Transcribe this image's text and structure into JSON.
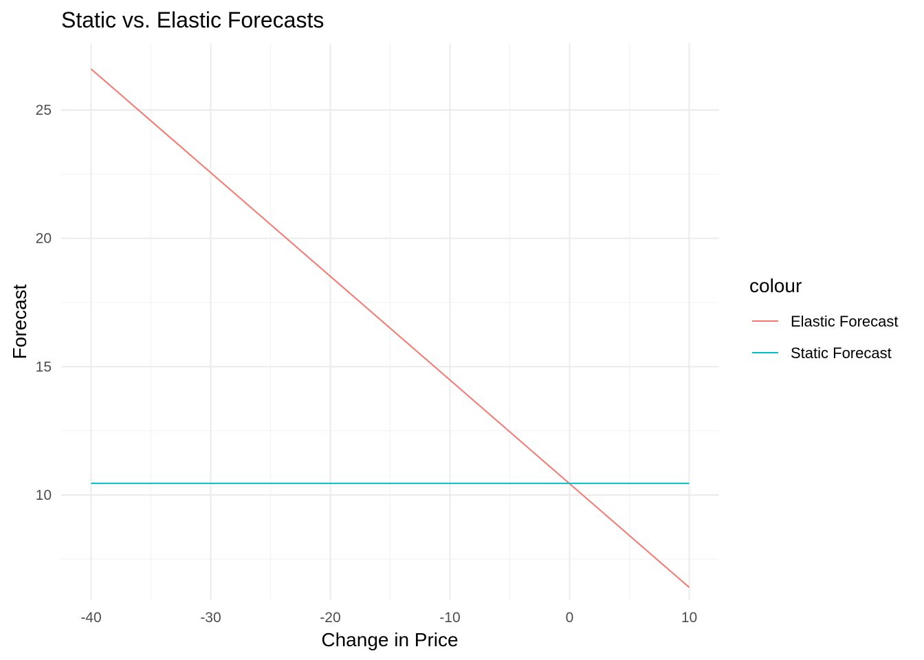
{
  "chart_data": {
    "type": "line",
    "title": "Static vs. Elastic Forecasts",
    "xlabel": "Change in Price",
    "ylabel": "Forecast",
    "xlim": [
      -42.5,
      12.5
    ],
    "ylim": [
      5.9,
      27.6
    ],
    "x_ticks": [
      -40,
      -30,
      -20,
      -10,
      0,
      10
    ],
    "x_tick_labels": [
      "-40",
      "-30",
      "-20",
      "-10",
      "0",
      "10"
    ],
    "x_minor_ticks": [
      -35,
      -25,
      -15,
      -5,
      5
    ],
    "y_ticks": [
      10,
      15,
      20,
      25
    ],
    "y_tick_labels": [
      "10",
      "15",
      "20",
      "25"
    ],
    "y_minor_ticks": [
      7.5,
      12.5,
      17.5,
      22.5
    ],
    "grid": true,
    "legend": {
      "title": "colour",
      "position": "right"
    },
    "series": [
      {
        "name": "Elastic Forecast",
        "color": "#F8766D",
        "x": [
          -40,
          10
        ],
        "y": [
          26.6,
          6.4
        ]
      },
      {
        "name": "Static Forecast",
        "color": "#00BFC4",
        "x": [
          -40,
          10
        ],
        "y": [
          10.45,
          10.45
        ]
      }
    ]
  }
}
